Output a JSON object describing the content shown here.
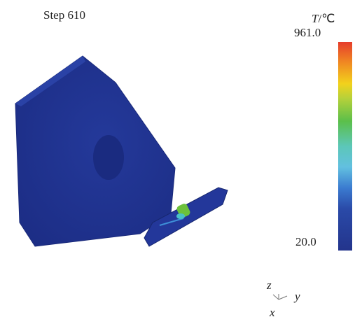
{
  "step_label": "Step 610",
  "legend": {
    "symbol": "T",
    "unit": "/℃",
    "max_label": "961.0",
    "min_label": "20.0"
  },
  "axes": {
    "z": "z",
    "y": "y",
    "x": "x"
  }
}
